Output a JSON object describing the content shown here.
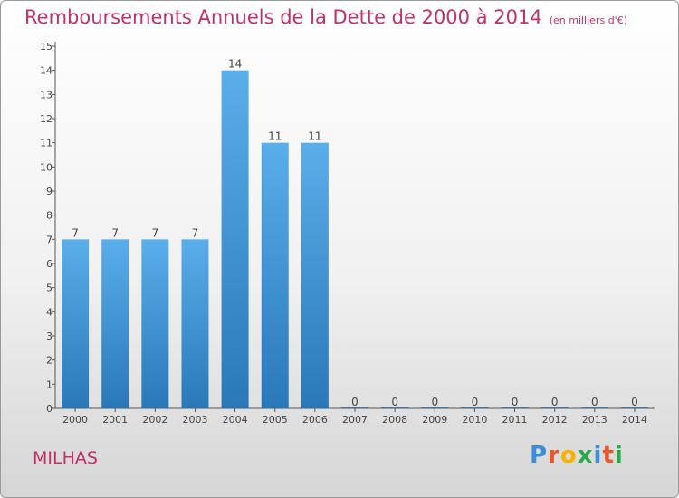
{
  "title": "Remboursements Annuels de la Dette de 2000 à 2014",
  "unit": "(en milliers d'€)",
  "commune": "MILHAS",
  "brand": {
    "name": "Proxiti",
    "letters": [
      {
        "ch": "P",
        "color": "#3a8fd8"
      },
      {
        "ch": "r",
        "color": "#e8572a"
      },
      {
        "ch": "o",
        "color": "#f4b400"
      },
      {
        "ch": "x",
        "color": "#2aa84a"
      },
      {
        "ch": "i",
        "color": "#3a8fd8"
      },
      {
        "ch": "t",
        "color": "#e8572a"
      },
      {
        "ch": "i",
        "color": "#2aa84a"
      }
    ]
  },
  "colors": {
    "title": "#c0306a",
    "bar_top": "#5aaeea",
    "bar_bottom": "#2a78b8",
    "axis": "#555555",
    "label": "#444444"
  },
  "chart_data": {
    "type": "bar",
    "title": "Remboursements Annuels de la Dette de 2000 à 2014",
    "unit": "(en milliers d'€)",
    "categories": [
      "2000",
      "2001",
      "2002",
      "2003",
      "2004",
      "2005",
      "2006",
      "2007",
      "2008",
      "2009",
      "2010",
      "2011",
      "2012",
      "2013",
      "2014"
    ],
    "values": [
      7,
      7,
      7,
      7,
      14,
      11,
      11,
      0,
      0,
      0,
      0,
      0,
      0,
      0,
      0
    ],
    "ylim": [
      0,
      15
    ],
    "yticks": [
      0,
      1,
      2,
      3,
      4,
      5,
      6,
      7,
      8,
      9,
      10,
      11,
      12,
      13,
      14,
      15
    ],
    "grid": false,
    "legend": "none"
  }
}
